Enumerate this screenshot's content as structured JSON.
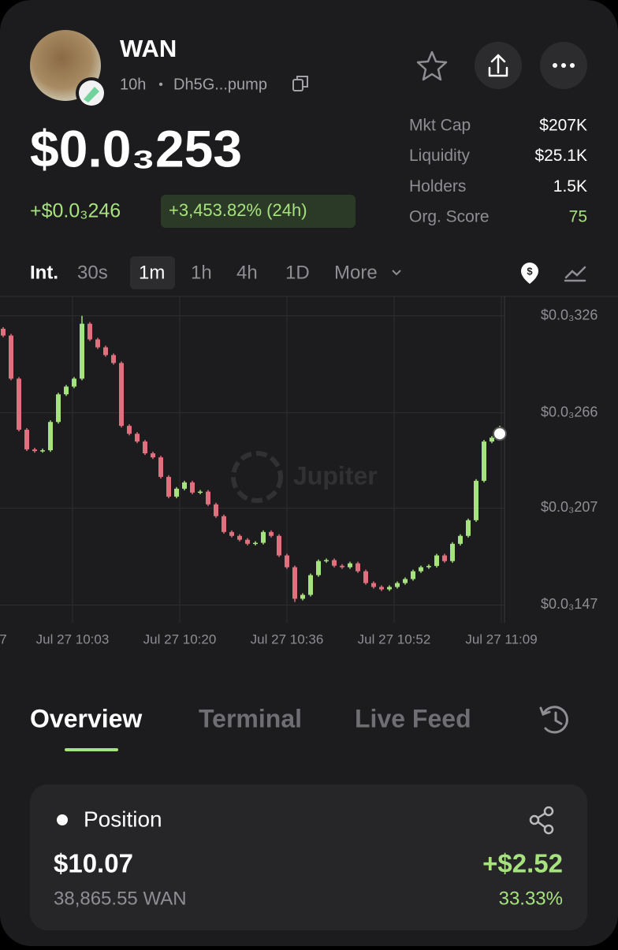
{
  "header": {
    "name": "WAN",
    "age": "10h",
    "separator": "•",
    "address": "Dh5G...pump",
    "price": "$0.0₃253",
    "change": "+$0.0₃246",
    "change_pct": "+3,453.82% (24h)"
  },
  "stats": [
    {
      "label": "Mkt Cap",
      "value": "$207K"
    },
    {
      "label": "Liquidity",
      "value": "$25.1K"
    },
    {
      "label": "Holders",
      "value": "1.5K"
    },
    {
      "label": "Org. Score",
      "value": "75"
    }
  ],
  "intervals": [
    "Int.",
    "30s",
    "1m",
    "1h",
    "4h",
    "1D",
    "More"
  ],
  "chart_data": {
    "type": "candlestick",
    "watermark": "Jupiter",
    "up_color": "#a6e27d",
    "down_color": "#e0707e",
    "grid": true,
    "open": [
      0.000318,
      0.0003138,
      0.0002871,
      0.0002555,
      0.0002433,
      0.0002423,
      0.0002428,
      0.0002603,
      0.0002774,
      0.0002822,
      0.0002871,
      0.0003211,
      0.0003114,
      0.0003065,
      0.0003017,
      0.0002968,
      0.0002579,
      0.000253,
      0.0002482,
      0.0002409,
      0.0002384,
      0.0002263,
      0.0002141,
      0.000219,
      0.0002229,
      0.0002166,
      0.0002172,
      0.0002093,
      0.000202,
      0.0001922,
      0.0001898,
      0.0001874,
      0.0001849,
      0.0001855,
      0.0001922,
      0.0001898,
      0.0001777,
      0.0001704,
      0.0001509,
      0.0001533,
      0.0001655,
      0.0001742,
      0.0001748,
      0.0001713,
      0.0001704,
      0.0001728,
      0.0001679,
      0.0001606,
      0.0001582,
      0.0001567,
      0.0001582,
      0.0001606,
      0.0001631,
      0.0001679,
      0.0001704,
      0.0001712,
      0.0001777,
      0.0001742,
      0.0001849,
      0.0001898,
      0.0001995,
      0.0002239,
      0.0002482,
      0.0002506
    ],
    "high": [
      0.000319,
      0.0003148,
      0.0002881,
      0.0002565,
      0.0002443,
      0.0002438,
      0.0002613,
      0.0002784,
      0.0002832,
      0.0002881,
      0.000326,
      0.0003221,
      0.0003124,
      0.0003075,
      0.0003027,
      0.0002978,
      0.0002589,
      0.000254,
      0.0002492,
      0.0002419,
      0.0002394,
      0.0002273,
      0.00022,
      0.0002239,
      0.0002239,
      0.0002182,
      0.0002182,
      0.0002103,
      0.000203,
      0.0001932,
      0.0001908,
      0.0001884,
      0.0001865,
      0.0001932,
      0.0001932,
      0.0001908,
      0.0001787,
      0.0001714,
      0.0001543,
      0.0001665,
      0.0001752,
      0.0001758,
      0.0001758,
      0.0001723,
      0.0001738,
      0.0001738,
      0.0001689,
      0.0001616,
      0.0001592,
      0.0001592,
      0.0001616,
      0.0001641,
      0.0001689,
      0.0001714,
      0.0001722,
      0.0001787,
      0.0001787,
      0.0001859,
      0.0001908,
      0.0002005,
      0.0002249,
      0.0002492,
      0.0002516,
      0.000258
    ],
    "low": [
      0.0003128,
      0.0002861,
      0.0002545,
      0.0002423,
      0.0002413,
      0.0002413,
      0.0002418,
      0.0002593,
      0.0002764,
      0.0002812,
      0.0002861,
      0.0003104,
      0.0003055,
      0.0003007,
      0.0002958,
      0.0002569,
      0.000252,
      0.0002472,
      0.0002399,
      0.0002374,
      0.0002253,
      0.0002131,
      0.0002131,
      0.000218,
      0.0002156,
      0.0002156,
      0.0002083,
      0.000201,
      0.0001912,
      0.0001888,
      0.0001864,
      0.0001839,
      0.0001839,
      0.0001845,
      0.0001888,
      0.0001767,
      0.0001694,
      0.0001489,
      0.0001499,
      0.0001523,
      0.0001645,
      0.0001732,
      0.0001703,
      0.0001694,
      0.0001694,
      0.0001669,
      0.0001596,
      0.0001572,
      0.0001557,
      0.0001557,
      0.0001572,
      0.0001596,
      0.0001621,
      0.0001669,
      0.0001694,
      0.0001702,
      0.0001732,
      0.0001732,
      0.0001839,
      0.0001888,
      0.0001985,
      0.0002229,
      0.0002472,
      0.0002496
    ],
    "close": [
      0.0003138,
      0.0002871,
      0.0002555,
      0.0002433,
      0.0002423,
      0.0002428,
      0.0002603,
      0.0002774,
      0.0002822,
      0.0002871,
      0.0003211,
      0.0003114,
      0.0003065,
      0.0003017,
      0.0002968,
      0.0002579,
      0.000253,
      0.0002482,
      0.0002409,
      0.0002384,
      0.0002263,
      0.0002141,
      0.000219,
      0.0002229,
      0.0002166,
      0.0002172,
      0.0002093,
      0.000202,
      0.0001922,
      0.0001898,
      0.0001874,
      0.0001849,
      0.0001855,
      0.0001922,
      0.0001898,
      0.0001777,
      0.0001704,
      0.0001509,
      0.0001533,
      0.0001655,
      0.0001742,
      0.0001748,
      0.0001713,
      0.0001704,
      0.0001728,
      0.0001679,
      0.0001606,
      0.0001582,
      0.0001567,
      0.0001582,
      0.0001606,
      0.0001631,
      0.0001679,
      0.0001704,
      0.0001712,
      0.0001777,
      0.0001742,
      0.0001849,
      0.0001898,
      0.0001995,
      0.0002239,
      0.0002482,
      0.0002506,
      0.000253
    ],
    "ylim": [
      0.000136,
      0.000338
    ],
    "yticks": [
      {
        "value": 0.000326,
        "label": "$0.0₃326"
      },
      {
        "value": 0.000266,
        "label": "$0.0₃266"
      },
      {
        "value": 0.000207,
        "label": "$0.0₃207"
      },
      {
        "value": 0.000147,
        "label": "$0.0₃147"
      }
    ],
    "xticks": [
      "7",
      "Jul 27 10:03",
      "Jul 27 10:20",
      "Jul 27 10:36",
      "Jul 27 10:52",
      "Jul 27 11:09"
    ]
  },
  "tabs": [
    "Overview",
    "Terminal",
    "Live Feed"
  ],
  "position": {
    "title": "Position",
    "value": "$10.07",
    "amount": "38,865.55 WAN",
    "pnl": "+$2.52",
    "pnl_pct": "33.33%"
  }
}
